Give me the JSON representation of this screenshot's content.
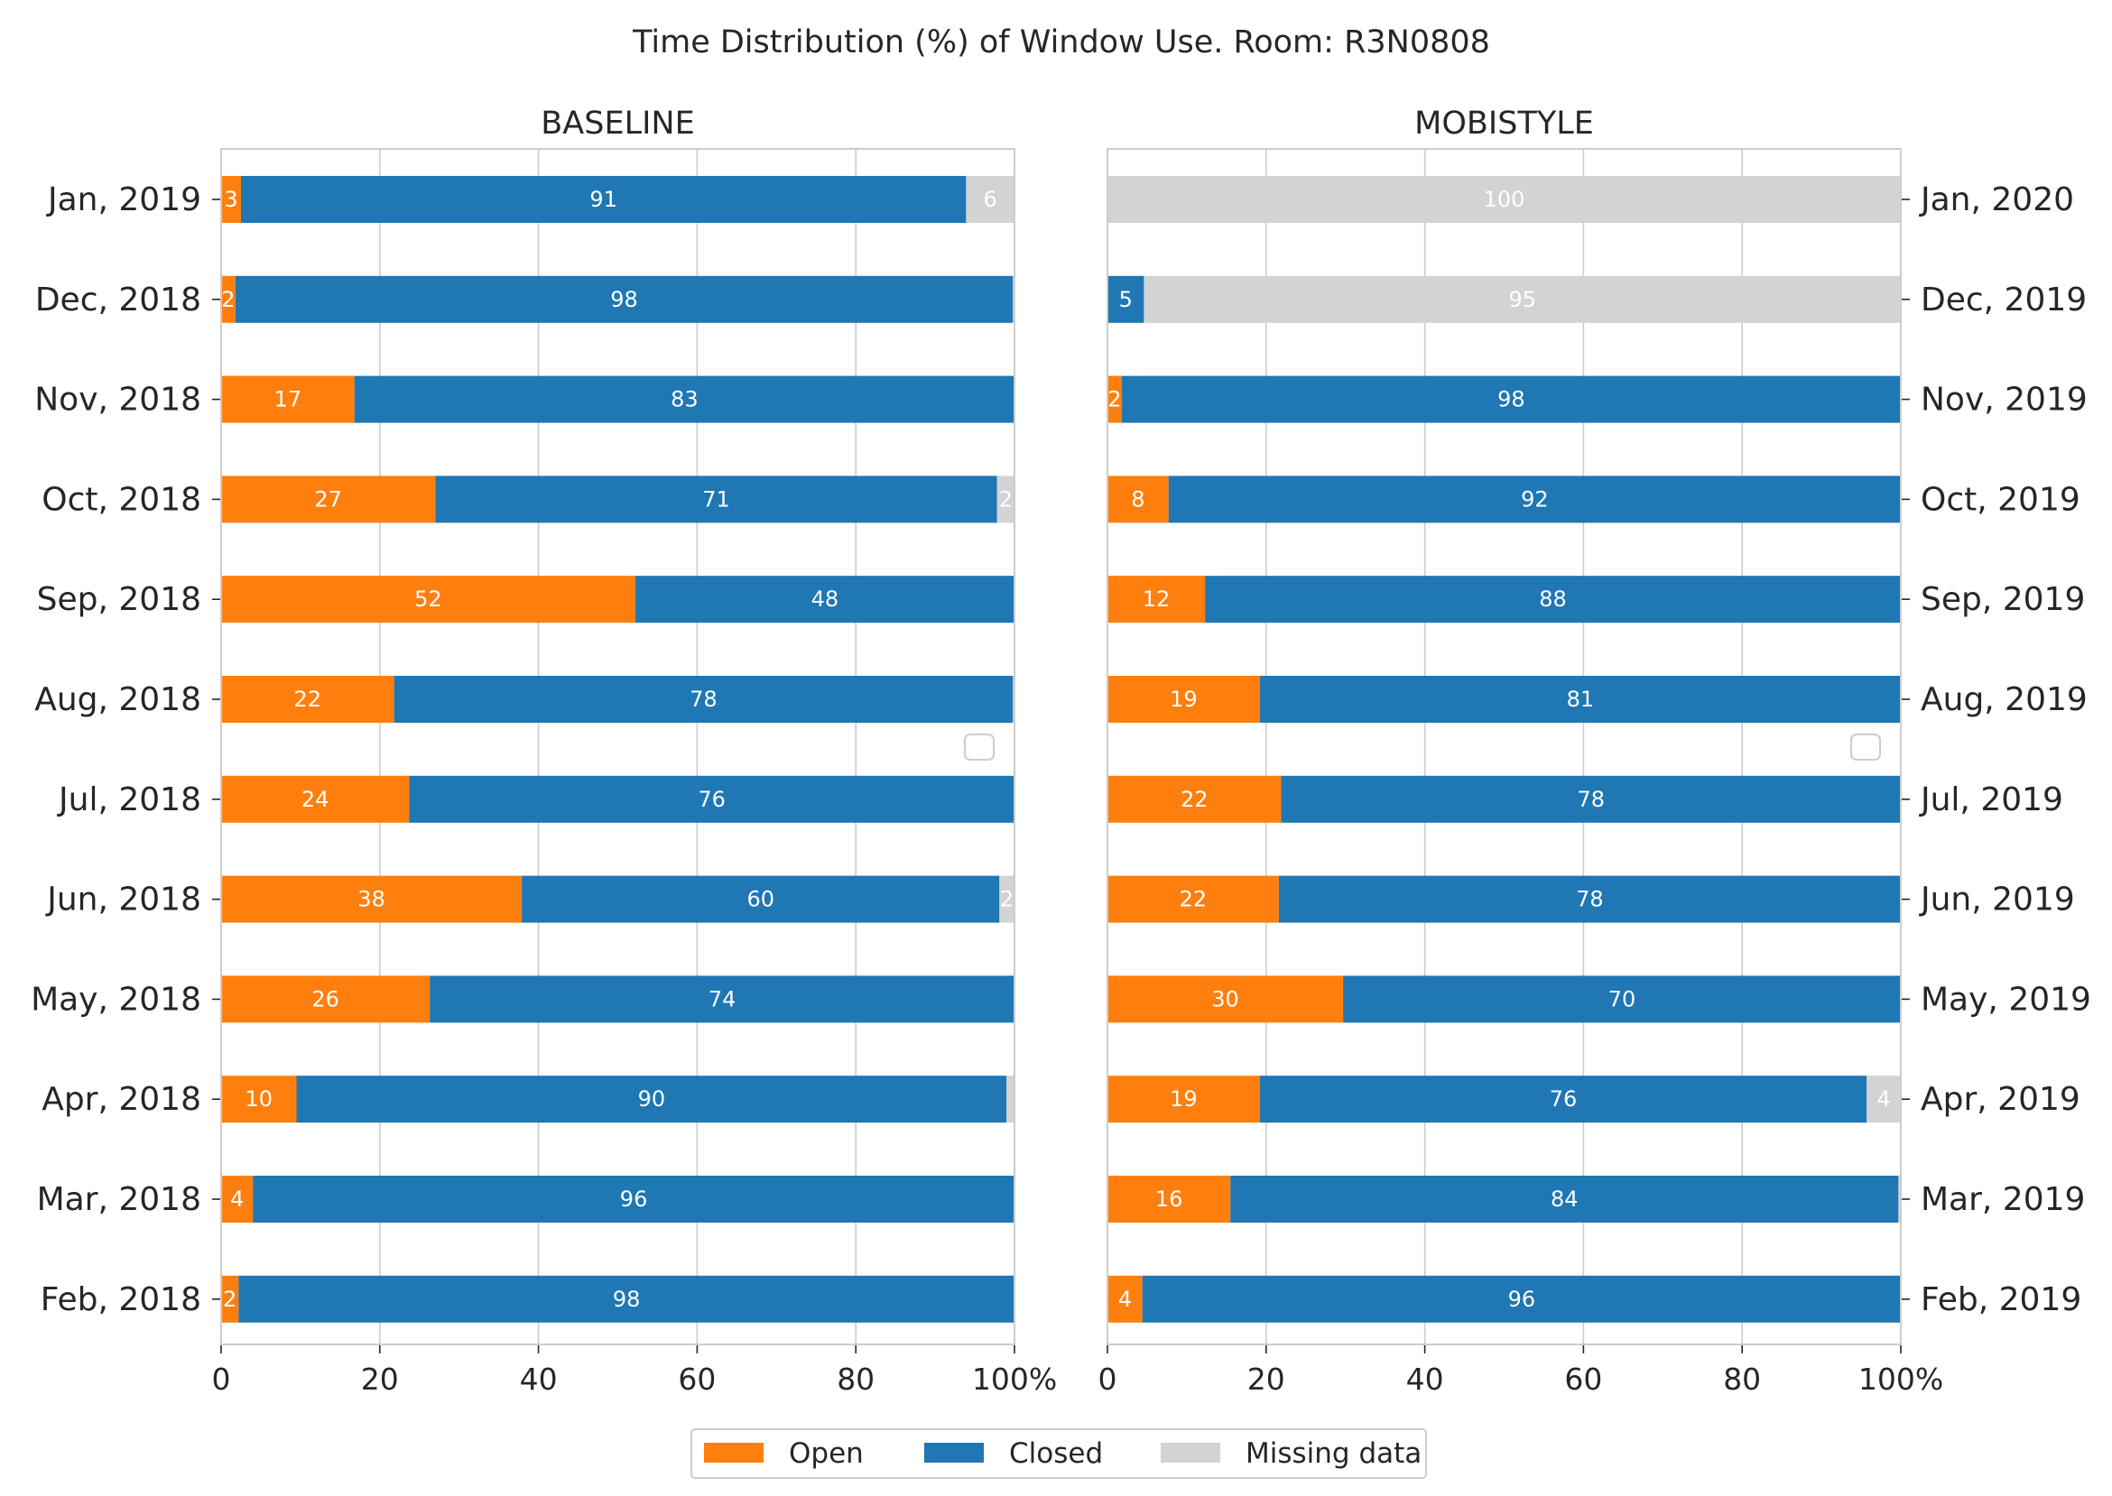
{
  "title": "Time Distribution (%) of Window Use. Room: R3N0808",
  "chart_data": [
    {
      "type": "bar",
      "orientation": "horizontal",
      "stacked": true,
      "title": "BASELINE",
      "xlim": [
        0,
        100
      ],
      "xticks": [
        "0",
        "20",
        "40",
        "60",
        "80",
        "100%"
      ],
      "grid": true,
      "ytick_side": "left",
      "categories": [
        "Jan, 2019",
        "Dec, 2018",
        "Nov, 2018",
        "Oct, 2018",
        "Sep, 2018",
        "Aug, 2018",
        "Jul, 2018",
        "Jun, 2018",
        "May, 2018",
        "Apr, 2018",
        "Mar, 2018",
        "Feb, 2018"
      ],
      "series": [
        {
          "name": "Open",
          "color": "#ff7f0e",
          "values": [
            2.5,
            1.8,
            16.8,
            27.0,
            52.2,
            21.8,
            23.7,
            37.9,
            26.3,
            9.5,
            4.0,
            2.2
          ],
          "labels": [
            "3",
            "2",
            "17",
            "27",
            "52",
            "22",
            "24",
            "38",
            "26",
            "10",
            "4",
            "2"
          ]
        },
        {
          "name": "Closed",
          "color": "#1f77b4",
          "values": [
            91.4,
            98.0,
            83.2,
            70.8,
            47.8,
            78.0,
            76.3,
            60.2,
            73.7,
            89.5,
            96.0,
            97.8
          ],
          "labels": [
            "91",
            "98",
            "83",
            "71",
            "48",
            "78",
            "76",
            "60",
            "74",
            "90",
            "96",
            "98"
          ]
        },
        {
          "name": "Missing data",
          "color": "#d3d3d3",
          "values": [
            6.1,
            0.2,
            0,
            2.2,
            0,
            0.2,
            0,
            1.9,
            0,
            1.0,
            0,
            0
          ],
          "labels": [
            "6",
            "",
            "",
            "2",
            "",
            "",
            "",
            "2",
            "",
            "",
            "",
            ""
          ]
        }
      ]
    },
    {
      "type": "bar",
      "orientation": "horizontal",
      "stacked": true,
      "title": "MOBISTYLE",
      "xlim": [
        0,
        100
      ],
      "xticks": [
        "0",
        "20",
        "40",
        "60",
        "80",
        "100%"
      ],
      "grid": true,
      "ytick_side": "right",
      "categories": [
        "Jan, 2020",
        "Dec, 2019",
        "Nov, 2019",
        "Oct, 2019",
        "Sep, 2019",
        "Aug, 2019",
        "Jul, 2019",
        "Jun, 2019",
        "May, 2019",
        "Apr, 2019",
        "Mar, 2019",
        "Feb, 2019"
      ],
      "series": [
        {
          "name": "Open",
          "color": "#ff7f0e",
          "values": [
            0,
            0,
            1.8,
            7.7,
            12.3,
            19.2,
            21.9,
            21.6,
            29.7,
            19.2,
            15.5,
            4.4
          ],
          "labels": [
            "",
            "",
            "2",
            "8",
            "12",
            "19",
            "22",
            "22",
            "30",
            "19",
            "16",
            "4"
          ]
        },
        {
          "name": "Closed",
          "color": "#1f77b4",
          "values": [
            0,
            4.6,
            98.2,
            92.3,
            87.7,
            80.8,
            78.1,
            78.4,
            70.3,
            76.5,
            84.2,
            95.6
          ],
          "labels": [
            "",
            "5",
            "98",
            "92",
            "88",
            "81",
            "78",
            "78",
            "70",
            "76",
            "84",
            "96"
          ]
        },
        {
          "name": "Missing data",
          "color": "#d3d3d3",
          "values": [
            100,
            95.4,
            0,
            0,
            0,
            0,
            0,
            0,
            0,
            4.3,
            0.3,
            0
          ],
          "labels": [
            "100",
            "95",
            "",
            "",
            "",
            "",
            "",
            "",
            "",
            "4",
            "",
            ""
          ]
        }
      ]
    }
  ],
  "legend": {
    "placement": "bottom-center",
    "entries": [
      {
        "label": "Open",
        "color": "#ff7f0e"
      },
      {
        "label": "Closed",
        "color": "#1f77b4"
      },
      {
        "label": "Missing data",
        "color": "#d3d3d3"
      }
    ]
  }
}
